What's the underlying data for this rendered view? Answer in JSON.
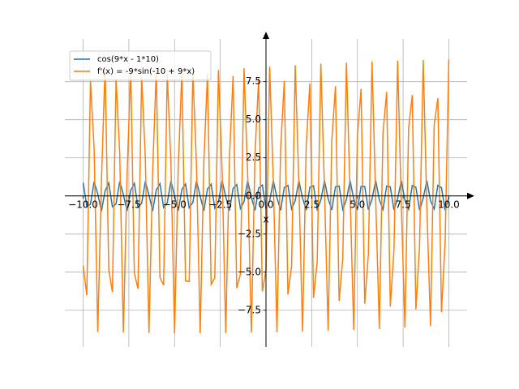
{
  "chart_data": {
    "type": "line",
    "x_label": "x",
    "x": [
      -10,
      -9.8,
      -9.6,
      -9.4,
      -9.2,
      -9,
      -8.8,
      -8.6,
      -8.4,
      -8.2,
      -8,
      -7.8,
      -7.6,
      -7.4,
      -7.2,
      -7,
      -6.8,
      -6.6,
      -6.4,
      -6.2,
      -6,
      -5.8,
      -5.6,
      -5.4,
      -5.2,
      -5,
      -4.8,
      -4.6,
      -4.4,
      -4.2,
      -4,
      -3.8,
      -3.6,
      -3.4,
      -3.2,
      -3,
      -2.8,
      -2.6,
      -2.4,
      -2.2,
      -2,
      -1.8,
      -1.6,
      -1.4,
      -1.2,
      -1,
      -0.8,
      -0.6,
      -0.4,
      -0.2,
      0,
      0.2,
      0.4,
      0.6,
      0.8,
      1,
      1.2,
      1.4,
      1.6,
      1.8,
      2,
      2.2,
      2.4,
      2.6,
      2.8,
      3,
      3.2,
      3.4,
      3.6,
      3.8,
      4,
      4.2,
      4.4,
      4.6,
      4.8,
      5,
      5.2,
      5.4,
      5.6,
      5.8,
      6,
      6.2,
      6.4,
      6.6,
      6.8,
      7,
      7.2,
      7.4,
      7.6,
      7.8,
      8,
      8.2,
      8.4,
      8.6,
      8.8,
      9,
      9.2,
      9.4,
      9.6,
      9.8,
      10
    ],
    "series": [
      {
        "name": "cos(9*x - 1*10)",
        "color": "#1f77b4",
        "values": [
          0.862,
          -0.689,
          -0.546,
          0.939,
          0.122,
          -0.994,
          0.33,
          0.845,
          -0.713,
          -0.517,
          0.95,
          0.089,
          -0.99,
          0.362,
          0.826,
          -0.736,
          -0.488,
          0.96,
          0.055,
          -0.986,
          0.393,
          0.806,
          -0.76,
          -0.458,
          0.969,
          0.021,
          -0.979,
          0.424,
          0.786,
          -0.781,
          -0.428,
          0.977,
          -0.013,
          -0.972,
          0.455,
          0.764,
          -0.802,
          -0.397,
          0.983,
          -0.047,
          -0.962,
          0.486,
          0.742,
          -0.822,
          -0.366,
          0.989,
          -0.081,
          -0.952,
          0.514,
          0.719,
          -0.841,
          -0.334,
          0.993,
          -0.115,
          -0.94,
          0.544,
          0.695,
          -0.86,
          -0.302,
          0.997,
          -0.149,
          -0.929,
          0.571,
          0.67,
          -0.876,
          -0.27,
          0.999,
          -0.182,
          -0.916,
          0.599,
          0.644,
          -0.891,
          -0.237,
          1,
          -0.216,
          -0.902,
          0.626,
          0.618,
          -0.906,
          -0.205,
          1,
          -0.249,
          -0.887,
          0.652,
          0.591,
          -0.919,
          -0.172,
          0.998,
          -0.282,
          -0.871,
          0.677,
          0.563,
          -0.932,
          -0.139,
          0.996,
          -0.315,
          -0.855,
          0.702,
          0.535,
          -0.944,
          -0.106
        ]
      },
      {
        "name": "f'(x) = -9*sin(-10 + 9*x)",
        "color": "#ff7f0e",
        "values": [
          -4.56,
          -6.52,
          7.54,
          3.1,
          -8.93,
          0.96,
          8.5,
          -4.82,
          -6.31,
          7.7,
          2.81,
          -8.96,
          1.26,
          8.39,
          -5.07,
          -6.09,
          7.85,
          2.52,
          -8.99,
          1.57,
          8.27,
          -5.33,
          -5.86,
          8,
          2.23,
          -9,
          1.87,
          8.15,
          -5.57,
          -5.62,
          8.13,
          1.93,
          -9,
          2.16,
          8.02,
          -5.81,
          -5.38,
          8.26,
          1.63,
          -8.99,
          2.46,
          7.87,
          -6.04,
          -5.13,
          8.38,
          1.33,
          -8.97,
          2.76,
          7.72,
          -6.26,
          -4.88,
          8.48,
          1.02,
          -8.94,
          3.05,
          7.55,
          -6.47,
          -4.62,
          8.58,
          0.72,
          -8.9,
          3.33,
          7.39,
          -6.69,
          -4.35,
          8.67,
          0.41,
          -8.85,
          3.61,
          7.21,
          -6.89,
          -4.09,
          8.74,
          0.11,
          -8.79,
          3.89,
          7.02,
          -7.07,
          -3.81,
          8.81,
          -0.2,
          -8.72,
          4.16,
          6.82,
          -7.26,
          -3.54,
          8.87,
          -0.5,
          -8.64,
          4.43,
          6.62,
          -7.44,
          -3.26,
          8.91,
          -0.81,
          -8.54,
          4.67,
          6.41,
          -7.62,
          -2.98,
          8.95
        ]
      }
    ],
    "xlim": [
      -11,
      11
    ],
    "ylim": [
      -9.9,
      10.3
    ],
    "xticks": [
      {
        "value": -10,
        "label": "−10.0"
      },
      {
        "value": -7.5,
        "label": "−7.5"
      },
      {
        "value": -5,
        "label": "−5.0"
      },
      {
        "value": -2.5,
        "label": "−2.5"
      },
      {
        "value": 0,
        "label": "0.0"
      },
      2.5,
      {
        "value": 5,
        "label": "5.0"
      },
      7.5,
      {
        "value": 10,
        "label": "10.0"
      }
    ],
    "yticks": [
      {
        "value": -7.5,
        "label": "−7.5"
      },
      {
        "value": -5,
        "label": "−5.0"
      },
      {
        "value": -2.5,
        "label": "−2.5"
      },
      {
        "value": 0,
        "label": "0.0"
      },
      2.5,
      {
        "value": 5,
        "label": "5.0"
      },
      7.5
    ],
    "grid": true,
    "legend": "upper left"
  }
}
